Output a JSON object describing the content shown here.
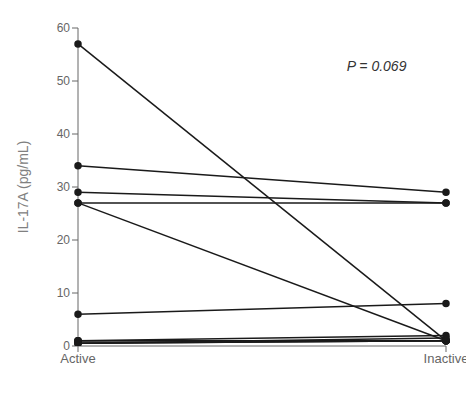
{
  "chart_data": {
    "type": "line",
    "categories": [
      "Active",
      "Inactive"
    ],
    "series": [
      {
        "values": [
          57,
          1
        ]
      },
      {
        "values": [
          34,
          29
        ]
      },
      {
        "values": [
          29,
          27
        ]
      },
      {
        "values": [
          27,
          1
        ]
      },
      {
        "values": [
          27,
          27
        ]
      },
      {
        "values": [
          6,
          8
        ]
      },
      {
        "values": [
          1,
          1
        ]
      },
      {
        "values": [
          1,
          1
        ]
      },
      {
        "values": [
          1,
          2
        ]
      },
      {
        "values": [
          0.5,
          1
        ]
      },
      {
        "values": [
          0.5,
          1
        ]
      },
      {
        "values": [
          0.5,
          1.5
        ]
      }
    ],
    "color": "#1a1a1a",
    "marker": "circle",
    "ylabel": "IL-17A (pg/mL)",
    "ylim": [
      0,
      60
    ],
    "yticks": [
      0,
      10,
      20,
      30,
      40,
      50,
      60
    ],
    "annotation": "P = 0.069",
    "grid": false
  }
}
